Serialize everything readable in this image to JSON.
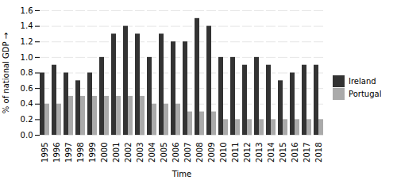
{
  "chart_data": {
    "type": "bar",
    "categories": [
      "1995",
      "1996",
      "1997",
      "1998",
      "1999",
      "2000",
      "2001",
      "2002",
      "2003",
      "2004",
      "2005",
      "2006",
      "2007",
      "2008",
      "2009",
      "2010",
      "2011",
      "2012",
      "2013",
      "2014",
      "2015",
      "2016",
      "2017",
      "2018"
    ],
    "series": [
      {
        "name": "Ireland",
        "color": "#333333",
        "values": [
          0.8,
          0.9,
          0.8,
          0.7,
          0.8,
          1.0,
          1.3,
          1.4,
          1.3,
          1.0,
          1.3,
          1.2,
          1.2,
          1.5,
          1.4,
          1.0,
          1.0,
          0.9,
          1.0,
          0.9,
          0.7,
          0.8,
          0.9,
          0.9
        ]
      },
      {
        "name": "Portugal",
        "color": "#aaaaaa",
        "values": [
          0.4,
          0.4,
          0.5,
          0.5,
          0.5,
          0.5,
          0.5,
          0.5,
          0.5,
          0.4,
          0.4,
          0.4,
          0.3,
          0.3,
          0.3,
          0.2,
          0.2,
          0.2,
          0.2,
          0.2,
          0.2,
          0.2,
          0.2,
          0.2
        ]
      }
    ],
    "xlabel": "Time",
    "ylabel": "% of national GDP",
    "ylim": [
      0.0,
      1.6
    ],
    "yticks": [
      {
        "value": 0.0,
        "label": "0.0"
      },
      0.2,
      0.4,
      0.6,
      0.8,
      {
        "value": 1.0,
        "label": "1.0"
      },
      1.2,
      1.4,
      1.6
    ],
    "grid": true,
    "legend": "right"
  }
}
